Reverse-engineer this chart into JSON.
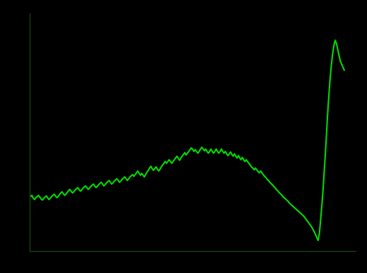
{
  "title": "",
  "background_color": "#000000",
  "line_color": "#00dd00",
  "line_width": 1.5,
  "spine_color": "#1a4010",
  "y_values": [
    9.5,
    9.2,
    9.4,
    8.9,
    8.7,
    9.0,
    9.2,
    9.4,
    9.1,
    8.8,
    8.6,
    8.9,
    9.1,
    9.3,
    9.0,
    8.7,
    8.9,
    9.2,
    9.4,
    9.6,
    9.3,
    9.0,
    9.2,
    9.5,
    9.8,
    10.0,
    9.7,
    9.4,
    9.6,
    9.9,
    10.2,
    10.4,
    10.1,
    9.8,
    10.0,
    10.3,
    10.5,
    10.7,
    10.4,
    10.1,
    10.3,
    10.6,
    10.8,
    11.0,
    10.7,
    10.4,
    10.6,
    10.9,
    11.1,
    11.3,
    11.0,
    10.7,
    10.9,
    11.2,
    11.4,
    11.6,
    11.3,
    11.0,
    11.2,
    11.5,
    11.7,
    11.9,
    11.6,
    11.3,
    11.5,
    11.8,
    12.0,
    12.2,
    11.9,
    11.6,
    11.8,
    12.1,
    12.3,
    12.5,
    12.2,
    11.9,
    12.2,
    12.5,
    12.7,
    12.9,
    12.6,
    12.9,
    13.2,
    13.5,
    13.1,
    12.8,
    13.1,
    12.8,
    12.5,
    12.9,
    13.3,
    13.6,
    14.0,
    14.3,
    13.9,
    13.6,
    13.9,
    14.2,
    13.8,
    13.5,
    13.8,
    14.2,
    14.5,
    14.8,
    15.1,
    14.8,
    15.1,
    15.4,
    15.1,
    14.8,
    15.1,
    15.4,
    15.7,
    16.0,
    15.6,
    15.3,
    15.7,
    16.0,
    16.3,
    16.6,
    16.2,
    16.5,
    16.8,
    17.1,
    17.4,
    17.1,
    16.8,
    17.1,
    16.8,
    16.5,
    16.8,
    17.2,
    17.5,
    17.2,
    16.9,
    17.2,
    16.8,
    16.5,
    16.8,
    17.2,
    16.8,
    16.5,
    16.8,
    17.2,
    16.8,
    16.5,
    16.8,
    17.2,
    16.8,
    16.5,
    16.8,
    16.4,
    16.1,
    16.4,
    16.7,
    16.3,
    16.0,
    16.4,
    16.0,
    15.7,
    16.1,
    15.7,
    15.4,
    15.8,
    15.4,
    15.1,
    15.4,
    15.1,
    14.8,
    14.5,
    14.2,
    14.0,
    13.7,
    14.0,
    13.7,
    13.4,
    13.2,
    13.5,
    13.2,
    12.9,
    12.6,
    12.4,
    12.1,
    11.9,
    11.6,
    11.4,
    11.2,
    10.9,
    10.7,
    10.4,
    10.2,
    9.9,
    9.7,
    9.5,
    9.2,
    9.0,
    8.8,
    8.6,
    8.4,
    8.1,
    7.9,
    7.7,
    7.5,
    7.3,
    7.1,
    6.9,
    6.7,
    6.5,
    6.3,
    6.1,
    5.9,
    5.6,
    5.3,
    5.0,
    4.7,
    4.4,
    4.1,
    3.7,
    3.3,
    2.8,
    2.3,
    1.8,
    3.0,
    5.5,
    8.0,
    11.0,
    14.5,
    18.0,
    22.0,
    25.5,
    28.5,
    31.0,
    33.0,
    34.5,
    35.5,
    35.0,
    34.0,
    33.0,
    32.0,
    31.5,
    31.0,
    30.5
  ],
  "ylim": [
    0,
    40
  ],
  "xlim": [
    0,
    250
  ]
}
